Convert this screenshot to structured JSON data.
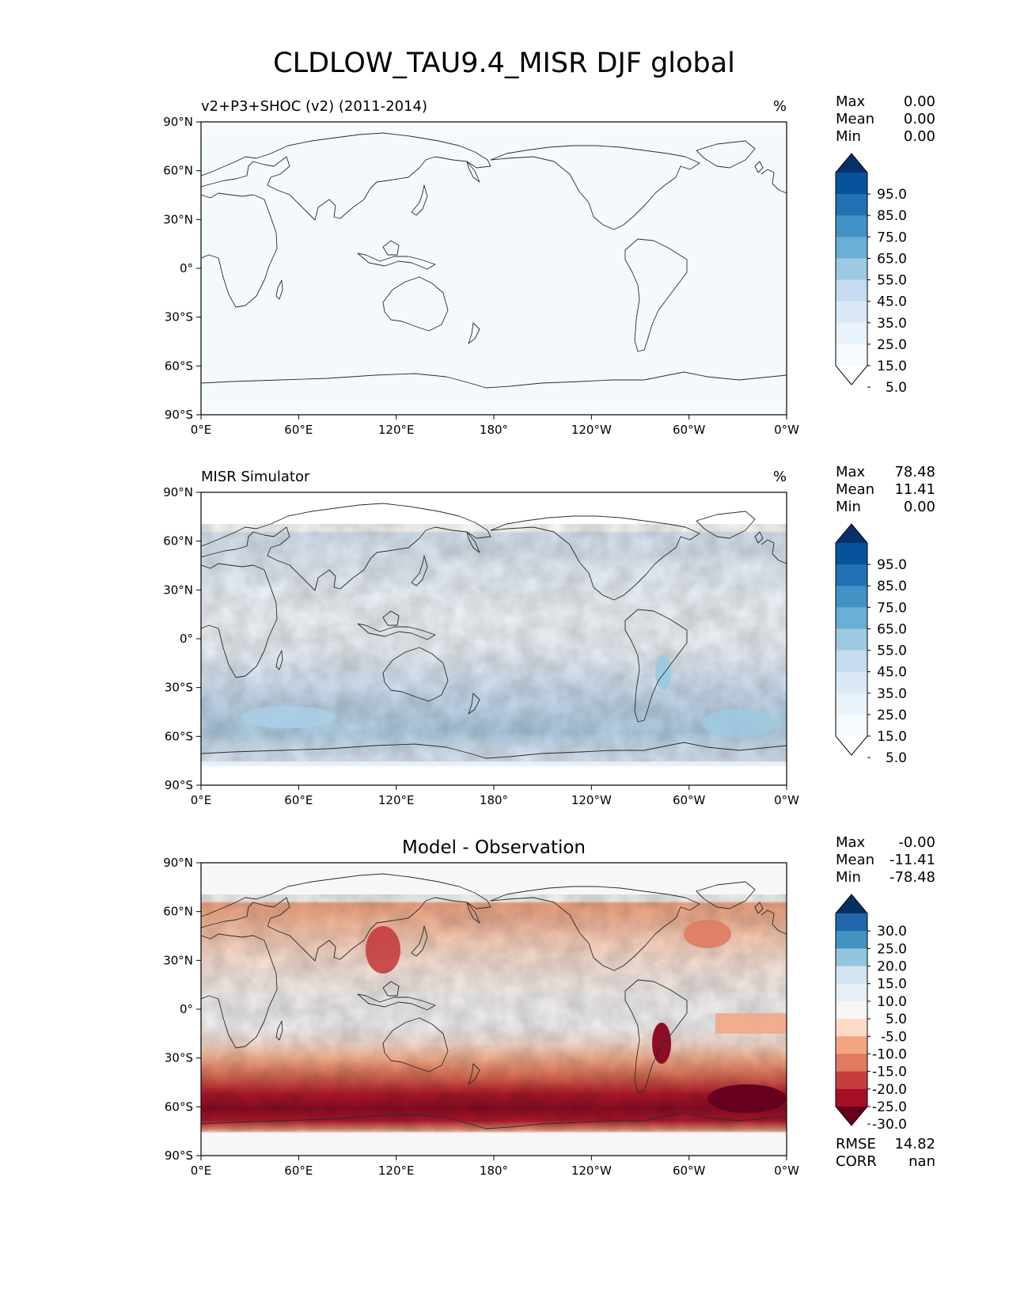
{
  "title": "CLDLOW_TAU9.4_MISR DJF global",
  "x_ticks": [
    "0°E",
    "60°E",
    "120°E",
    "180°",
    "120°W",
    "60°W",
    "0°W"
  ],
  "y_ticks": [
    "90°N",
    "60°N",
    "30°N",
    "0°",
    "30°S",
    "60°S",
    "90°S"
  ],
  "panels": [
    {
      "id": "model",
      "title_left": "v2+P3+SHOC (v2) (2011-2014)",
      "title_center": "",
      "units": "%",
      "stats": [
        {
          "label": "Max",
          "value": "0.00"
        },
        {
          "label": "Mean",
          "value": "0.00"
        },
        {
          "label": "Min",
          "value": "0.00"
        }
      ],
      "colorbar": {
        "labels": [
          "95.0",
          "85.0",
          "75.0",
          "65.0",
          "55.0",
          "45.0",
          "35.0",
          "25.0",
          "15.0",
          "5.0"
        ],
        "colors": [
          "#08306b",
          "#08519c",
          "#2171b5",
          "#4292c6",
          "#6baed6",
          "#9ecae1",
          "#c6dbef",
          "#dbe9f6",
          "#eaf2fb",
          "#f7fbff",
          "#ffffff"
        ]
      },
      "footer_stats": []
    },
    {
      "id": "obs",
      "title_left": "MISR Simulator",
      "title_center": "",
      "units": "%",
      "stats": [
        {
          "label": "Max",
          "value": "78.48"
        },
        {
          "label": "Mean",
          "value": "11.41"
        },
        {
          "label": "Min",
          "value": "0.00"
        }
      ],
      "colorbar": {
        "labels": [
          "95.0",
          "85.0",
          "75.0",
          "65.0",
          "55.0",
          "45.0",
          "35.0",
          "25.0",
          "15.0",
          "5.0"
        ],
        "colors": [
          "#08306b",
          "#08519c",
          "#2171b5",
          "#4292c6",
          "#6baed6",
          "#9ecae1",
          "#c6dbef",
          "#dbe9f6",
          "#eaf2fb",
          "#f7fbff",
          "#ffffff"
        ]
      },
      "footer_stats": []
    },
    {
      "id": "diff",
      "title_left": "",
      "title_center": "Model - Observation",
      "units": "",
      "stats": [
        {
          "label": "Max",
          "value": "-0.00"
        },
        {
          "label": "Mean",
          "value": "-11.41"
        },
        {
          "label": "Min",
          "value": "-78.48"
        }
      ],
      "colorbar": {
        "labels": [
          "30.0",
          "25.0",
          "20.0",
          "15.0",
          "10.0",
          "5.0",
          "-5.0",
          "-10.0",
          "-15.0",
          "-20.0",
          "-25.0",
          "-30.0"
        ],
        "colors": [
          "#053061",
          "#2166ac",
          "#4393c3",
          "#92c5de",
          "#d1e5f0",
          "#e7eff5",
          "#f7f7f7",
          "#fddbc7",
          "#f4a582",
          "#e07b62",
          "#c53e3d",
          "#a50f26",
          "#67001f"
        ]
      },
      "footer_stats": [
        {
          "label": "RMSE",
          "value": "14.82"
        },
        {
          "label": "CORR",
          "value": "nan"
        }
      ]
    }
  ],
  "map_data": {
    "projection": "PlateCarree, central longitude 180",
    "model_field": "near-zero everywhere (0.00)",
    "obs_field_bands": [
      {
        "lat": [
          -65,
          -40
        ],
        "value": 30
      },
      {
        "lat": [
          -40,
          -20
        ],
        "value": 20
      },
      {
        "lat": [
          25,
          55
        ],
        "value": 20
      },
      {
        "lat": [
          -10,
          10
        ],
        "value": 5
      }
    ],
    "diff_field_bands": [
      {
        "lat": [
          -68,
          -45
        ],
        "value": -30
      },
      {
        "lat": [
          -45,
          -30
        ],
        "value": -20
      },
      {
        "lat": [
          -30,
          -15
        ],
        "value": -10
      },
      {
        "lat": [
          25,
          60
        ],
        "value": -15
      },
      {
        "lat": [
          -10,
          15
        ],
        "value": -2
      }
    ]
  }
}
